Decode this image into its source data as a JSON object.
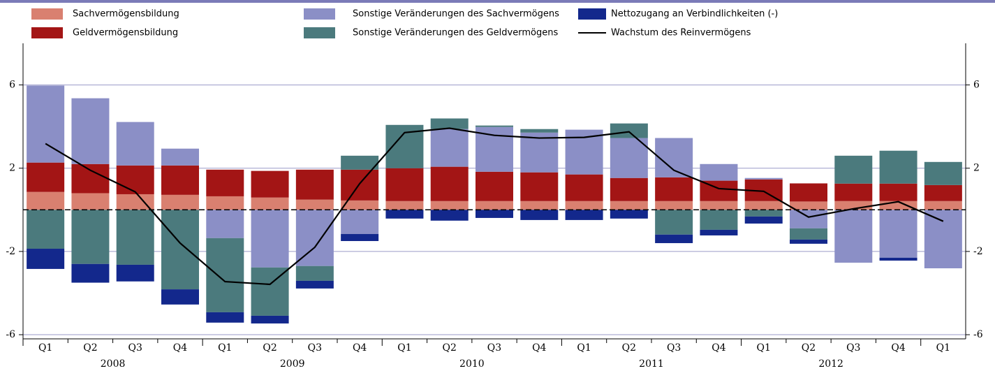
{
  "chart_data": {
    "type": "bar",
    "categories": [
      "Q1",
      "Q2",
      "Q3",
      "Q4",
      "Q1",
      "Q2",
      "Q3",
      "Q4",
      "Q1",
      "Q2",
      "Q3",
      "Q4",
      "Q1",
      "Q2",
      "Q3",
      "Q4",
      "Q1",
      "Q2",
      "Q3",
      "Q4",
      "Q1"
    ],
    "years": [
      "2008",
      "2009",
      "2010",
      "2011",
      "2012"
    ],
    "series": [
      {
        "name": "Sachvermögensbildung",
        "color": "#d98070",
        "values": [
          0.86,
          0.8,
          0.75,
          0.72,
          0.65,
          0.59,
          0.49,
          0.45,
          0.42,
          0.42,
          0.42,
          0.42,
          0.42,
          0.42,
          0.42,
          0.42,
          0.42,
          0.4,
          0.42,
          0.42,
          0.42
        ]
      },
      {
        "name": "Geldvermögensbildung",
        "color": "#a31515",
        "values": [
          1.41,
          1.4,
          1.38,
          1.41,
          1.28,
          1.28,
          1.44,
          1.48,
          1.58,
          1.65,
          1.41,
          1.38,
          1.28,
          1.11,
          1.14,
          0.98,
          1.04,
          0.87,
          0.84,
          0.84,
          0.77
        ]
      },
      {
        "name": "Sonstige Veränderungen des Sachvermögens",
        "color": "#8b8fc6",
        "values": [
          3.7,
          3.16,
          2.09,
          0.81,
          -1.36,
          -2.77,
          -2.7,
          -1.16,
          0,
          1.81,
          2.15,
          1.91,
          2.15,
          1.92,
          1.89,
          0.8,
          0.07,
          -0.89,
          -2.54,
          -2.3,
          -2.81
        ]
      },
      {
        "name": "Sonstige Veränderungen des Geldvermögens",
        "color": "#4b7a7d",
        "values": [
          -1.87,
          -2.6,
          -2.64,
          -3.82,
          -3.56,
          -2.32,
          -0.71,
          0.67,
          2.08,
          0.51,
          0.07,
          0.17,
          0,
          0.7,
          -1.19,
          -0.96,
          -0.32,
          -0.54,
          1.34,
          1.58,
          1.11
        ]
      },
      {
        "name": "Nettozugang an Verbindlichkeiten (-)",
        "color": "#13288c",
        "values": [
          -0.97,
          -0.9,
          -0.8,
          -0.73,
          -0.5,
          -0.37,
          -0.37,
          -0.34,
          -0.42,
          -0.52,
          -0.39,
          -0.49,
          -0.49,
          -0.42,
          -0.41,
          -0.27,
          -0.34,
          -0.2,
          0,
          -0.14,
          0
        ]
      },
      {
        "name": "Wachstum des Reinvermögens",
        "type": "line",
        "color": "#000000",
        "values": [
          3.18,
          1.9,
          0.86,
          -1.6,
          -3.45,
          -3.58,
          -1.8,
          1.26,
          3.71,
          3.92,
          3.58,
          3.45,
          3.48,
          3.75,
          1.9,
          1.02,
          0.89,
          -0.35,
          0.05,
          0.39,
          -0.55
        ]
      }
    ],
    "ylim": [
      -6.2,
      8
    ],
    "yticks": [
      -6,
      -2,
      2,
      6
    ],
    "grid": true
  }
}
